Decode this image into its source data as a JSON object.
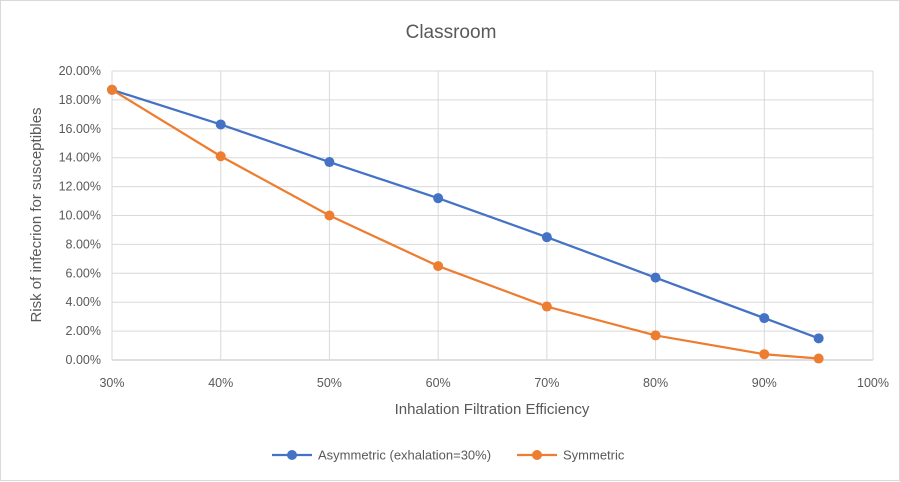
{
  "chart_data": {
    "type": "line",
    "title": "Classroom",
    "xlabel": "Inhalation Filtration Efficiency",
    "ylabel": "Risk of infecrion for susceptibles",
    "xlim": [
      0.3,
      1.0
    ],
    "ylim": [
      0,
      0.2
    ],
    "x_ticks": [
      "30%",
      "40%",
      "50%",
      "60%",
      "70%",
      "80%",
      "90%",
      "100%"
    ],
    "y_ticks": [
      "0.00%",
      "2.00%",
      "4.00%",
      "6.00%",
      "8.00%",
      "10.00%",
      "12.00%",
      "14.00%",
      "16.00%",
      "18.00%",
      "20.00%"
    ],
    "grid": true,
    "legend_position": "bottom",
    "x": [
      0.3,
      0.4,
      0.5,
      0.6,
      0.7,
      0.8,
      0.9,
      0.95
    ],
    "series": [
      {
        "name": "Asymmetric (exhalation=30%)",
        "color": "#4472c4",
        "values": [
          0.187,
          0.163,
          0.137,
          0.112,
          0.085,
          0.057,
          0.029,
          0.015
        ]
      },
      {
        "name": "Symmetric",
        "color": "#ed7d31",
        "values": [
          0.187,
          0.141,
          0.1,
          0.065,
          0.037,
          0.017,
          0.004,
          0.001
        ]
      }
    ]
  }
}
